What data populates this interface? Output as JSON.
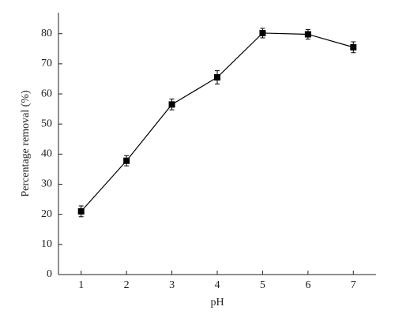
{
  "chart_data": {
    "type": "line",
    "x_label": "pH",
    "y_label": "Percentage removal (%)",
    "x": [
      1,
      2,
      3,
      4,
      5,
      6,
      7
    ],
    "series": [
      {
        "color": "#000000",
        "values": [
          21,
          37.8,
          56.5,
          65.5,
          80.2,
          79.8,
          75.5
        ],
        "errors": [
          1.8,
          1.7,
          1.8,
          2.2,
          1.6,
          1.6,
          1.8
        ]
      }
    ],
    "xlim": [
      0.5,
      7.5
    ],
    "xticks": [
      1,
      2,
      3,
      4,
      5,
      6,
      7
    ],
    "ylim": [
      0,
      87
    ],
    "yticks": [
      0,
      10,
      20,
      30,
      40,
      50,
      60,
      70,
      80
    ],
    "grid": false
  }
}
